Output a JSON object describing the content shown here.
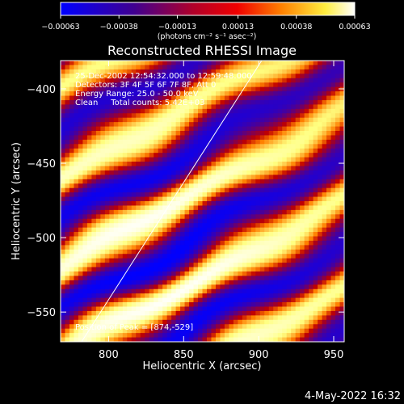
{
  "chart_data": {
    "type": "heatmap",
    "title": "Reconstructed RHESSI Image",
    "xlabel": "Heliocentric X (arcsec)",
    "ylabel": "Heliocentric Y (arcsec)",
    "xlim": [
      768,
      957
    ],
    "ylim": [
      -570,
      -381
    ],
    "x_ticks": [
      800,
      850,
      900,
      950
    ],
    "x_tick_labels": [
      "800",
      "850",
      "900",
      "950"
    ],
    "y_ticks": [
      -400,
      -450,
      -500,
      -550
    ],
    "y_tick_labels": [
      "−400",
      "−450",
      "−500",
      "−550"
    ],
    "colorbar": {
      "min": -0.00063,
      "max": 0.00063,
      "ticks": [
        -0.00063,
        -0.00038,
        -0.00013,
        0.00013,
        0.00038,
        0.00063
      ],
      "tick_labels": [
        "−0.00063",
        "−0.00038",
        "−0.00013",
        "0.00013",
        "0.00038",
        "0.00063"
      ],
      "unit_label": "(photons cm⁻² s⁻¹ asec⁻²)",
      "colors": [
        "#0000ff",
        "#500090",
        "#c00000",
        "#ff8000",
        "#ffff80",
        "#ffffff"
      ]
    },
    "annotations": [
      "25-Dec-2002 12:54:32.000 to 12:59:48.000",
      "Detectors: 3F 4F 5F 6F 7F 8F, Att 0",
      "Energy Range: 25.0 - 50.0 keV",
      "Clean     Total counts: 5.42E+03",
      "Position of Peak = [874,-529]"
    ],
    "peak": {
      "x": 874,
      "y": -529
    },
    "fringe_orientation": "diagonal, rising to the upper right",
    "limb_line": {
      "x": [
        782,
        902
      ],
      "y": [
        -570,
        -381
      ],
      "color": "#ffffff"
    },
    "grid": false
  },
  "footer": {
    "date": "4-May-2022 16:32"
  }
}
